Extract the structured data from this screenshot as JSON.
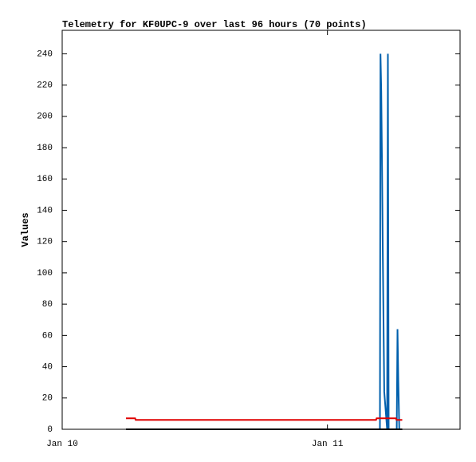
{
  "chart_data": {
    "type": "line",
    "title": "Telemetry for KF0UPC-9 over last 96 hours (70 points)",
    "y_label": "Values",
    "xlim": [
      0,
      36
    ],
    "xticks": [
      {
        "value": 0,
        "label": "Jan 10"
      },
      {
        "value": 24,
        "label": "Jan 11"
      }
    ],
    "ylim": [
      0,
      255
    ],
    "yticks": [
      0,
      20,
      40,
      60,
      80,
      100,
      120,
      140,
      160,
      180,
      200,
      220,
      240
    ],
    "grid": false,
    "series": [
      {
        "color": "#0060ad",
        "x": [
          28.75,
          28.8,
          28.87,
          28.94,
          29.0,
          29.07,
          29.14,
          29.4,
          29.47,
          29.54,
          30.27,
          30.34,
          30.41,
          30.5
        ],
        "values": [
          0,
          240,
          216,
          168,
          120,
          72,
          24,
          0,
          240,
          0,
          0,
          64,
          32,
          0
        ]
      },
      {
        "color": "#e00000",
        "x": [
          5.77,
          6.6,
          6.65,
          28.4,
          28.45,
          30.2,
          30.25,
          30.77
        ],
        "values": [
          7,
          7,
          6,
          6,
          7,
          7,
          6,
          6
        ]
      },
      {
        "color": "#000000",
        "x": [
          5.77,
          30.77
        ],
        "values": [
          0,
          0
        ]
      }
    ]
  }
}
